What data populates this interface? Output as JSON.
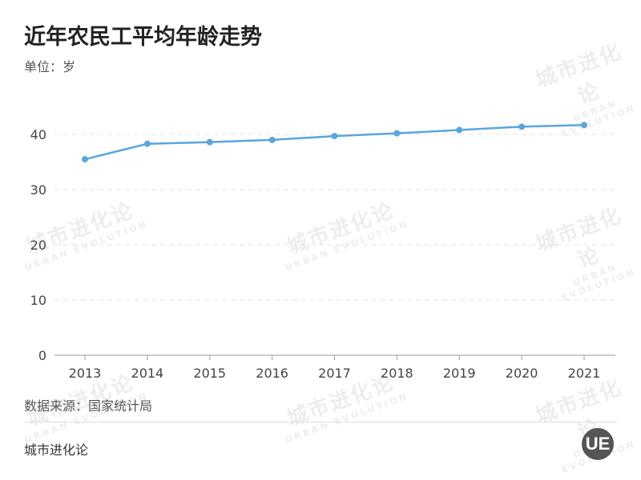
{
  "chart_data": {
    "type": "line",
    "title": "近年农民工平均年龄走势",
    "ylabel": "单位：岁",
    "categories": [
      "2013",
      "2014",
      "2015",
      "2016",
      "2017",
      "2018",
      "2019",
      "2020",
      "2021"
    ],
    "values": [
      35.5,
      38.3,
      38.6,
      39.0,
      39.7,
      40.2,
      40.8,
      41.4,
      41.7
    ],
    "ylim": [
      0,
      40
    ],
    "yticks": [
      0,
      10,
      20,
      30,
      40
    ],
    "grid": true,
    "line_color": "#5aa6df"
  },
  "source": "数据来源：国家统计局",
  "brand": "城市进化论",
  "watermark": {
    "cn": "城市进化论",
    "en": "URBAN EVOLUTION"
  },
  "logo": "UE"
}
